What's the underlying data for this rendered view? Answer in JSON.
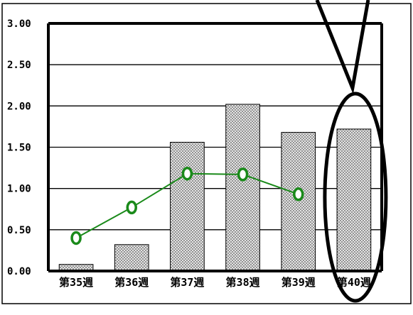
{
  "chart_data": {
    "type": "bar",
    "title": "",
    "xlabel": "",
    "ylabel": "",
    "categories": [
      "第35週",
      "第36週",
      "第37週",
      "第38週",
      "第39週",
      "第40週"
    ],
    "y_ticks": [
      "0.00",
      "0.50",
      "1.00",
      "1.50",
      "2.00",
      "2.50",
      "3.00"
    ],
    "ylim": [
      0,
      3
    ],
    "grid": true,
    "legend": "none",
    "series": [
      {
        "kind": "bar",
        "values": [
          0.08,
          0.32,
          1.56,
          2.02,
          1.68,
          1.72
        ],
        "fill": "dotted-gray"
      },
      {
        "kind": "line",
        "values": [
          0.4,
          0.77,
          1.18,
          1.17,
          0.93,
          null
        ],
        "color": "#1a8a1a",
        "marker": "open-circle"
      }
    ],
    "annotations": [
      {
        "type": "ellipse-highlight",
        "category": "第40週"
      },
      {
        "type": "callout-pointer",
        "category": "第40週"
      }
    ]
  },
  "colors": {
    "line": "#1a8a1a",
    "axis": "#000000",
    "bar_stroke": "#000000",
    "background": "#ffffff"
  }
}
